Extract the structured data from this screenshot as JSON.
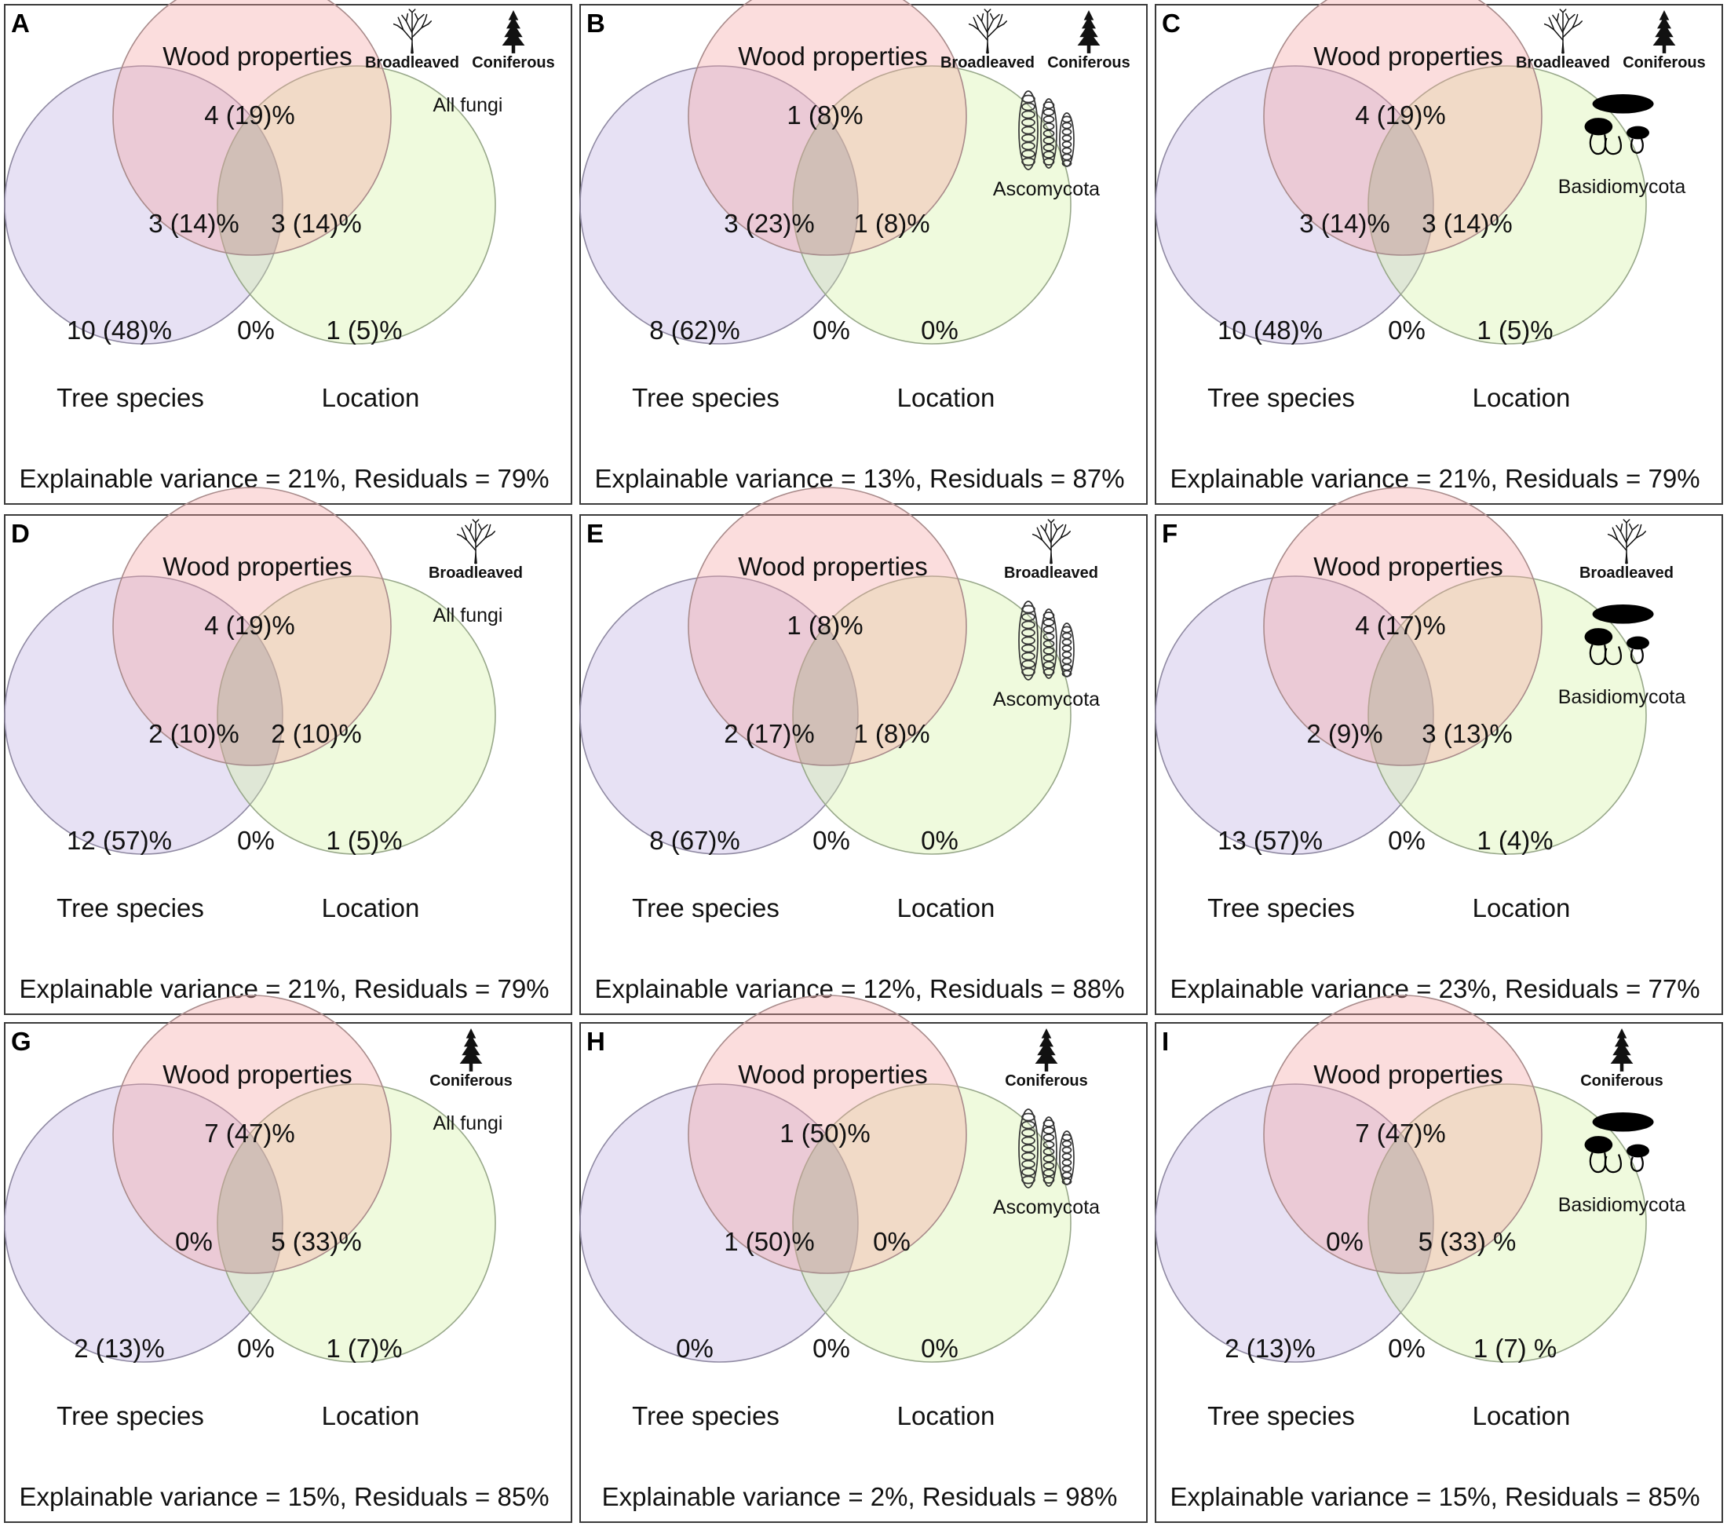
{
  "colors": {
    "wood": "#f4a2a2",
    "tree": "#b5a3df",
    "location": "#d4f0a0",
    "frame": "#3a3a3a"
  },
  "panels": [
    {
      "label": "A",
      "wood_label": "Wood properties",
      "tree_label": "Tree species",
      "location_label": "Location",
      "wood_only": "4 (19)%",
      "wood_tree": "3 (14)%",
      "wood_location": "3 (14)%",
      "tree_only": "10 (48)%",
      "center": "0%",
      "location_only": "1 (5)%",
      "summary": "Explainable variance = 21%, Residuals = 79%",
      "icons": {
        "broadleaved": "Broadleaved",
        "coniferous": "Coniferous"
      },
      "group": "All fungi",
      "group_icon": "none-icon"
    },
    {
      "label": "B",
      "wood_label": "Wood properties",
      "tree_label": "Tree species",
      "location_label": "Location",
      "wood_only": "1 (8)%",
      "wood_tree": "3 (23)%",
      "wood_location": "1 (8)%",
      "tree_only": "8 (62)%",
      "center": "0%",
      "location_only": "0%",
      "summary": "Explainable variance = 13%, Residuals = 87%",
      "icons": {
        "broadleaved": "Broadleaved",
        "coniferous": "Coniferous"
      },
      "group": "Ascomycota",
      "group_icon": "ascus-icon"
    },
    {
      "label": "C",
      "wood_label": "Wood properties",
      "tree_label": "Tree species",
      "location_label": "Location",
      "wood_only": "4 (19)%",
      "wood_tree": "3 (14)%",
      "wood_location": "3 (14)%",
      "tree_only": "10 (48)%",
      "center": "0%",
      "location_only": "1 (5)%",
      "summary": "Explainable variance = 21%, Residuals = 79%",
      "icons": {
        "broadleaved": "Broadleaved",
        "coniferous": "Coniferous"
      },
      "group": "Basidiomycota",
      "group_icon": "mushroom-icon"
    },
    {
      "label": "D",
      "wood_label": "Wood properties",
      "tree_label": "Tree species",
      "location_label": "Location",
      "wood_only": "4 (19)%",
      "wood_tree": "2 (10)%",
      "wood_location": "2 (10)%",
      "tree_only": "12 (57)%",
      "center": "0%",
      "location_only": "1 (5)%",
      "summary": "Explainable variance = 21%, Residuals = 79%",
      "icons": {
        "broadleaved": "Broadleaved"
      },
      "group": "All fungi",
      "group_icon": "none-icon"
    },
    {
      "label": "E",
      "wood_label": "Wood properties",
      "tree_label": "Tree species",
      "location_label": "Location",
      "wood_only": "1 (8)%",
      "wood_tree": "2 (17)%",
      "wood_location": "1 (8)%",
      "tree_only": "8 (67)%",
      "center": "0%",
      "location_only": "0%",
      "summary": "Explainable variance = 12%, Residuals = 88%",
      "icons": {
        "broadleaved": "Broadleaved"
      },
      "group": "Ascomycota",
      "group_icon": "ascus-icon"
    },
    {
      "label": "F",
      "wood_label": "Wood properties",
      "tree_label": "Tree species",
      "location_label": "Location",
      "wood_only": "4 (17)%",
      "wood_tree": "2 (9)%",
      "wood_location": "3 (13)%",
      "tree_only": "13 (57)%",
      "center": "0%",
      "location_only": "1 (4)%",
      "summary": "Explainable variance = 23%, Residuals = 77%",
      "icons": {
        "broadleaved": "Broadleaved"
      },
      "group": "Basidiomycota",
      "group_icon": "mushroom-icon"
    },
    {
      "label": "G",
      "wood_label": "Wood properties",
      "tree_label": "Tree species",
      "location_label": "Location",
      "wood_only": "7 (47)%",
      "wood_tree": "0%",
      "wood_location": "5 (33)%",
      "tree_only": "2 (13)%",
      "center": "0%",
      "location_only": "1 (7)%",
      "summary": "Explainable variance = 15%, Residuals = 85%",
      "icons": {
        "coniferous": "Coniferous"
      },
      "group": "All fungi",
      "group_icon": "none-icon"
    },
    {
      "label": "H",
      "wood_label": "Wood properties",
      "tree_label": "Tree species",
      "location_label": "Location",
      "wood_only": "1 (50)%",
      "wood_tree": "1 (50)%",
      "wood_location": "0%",
      "tree_only": "0%",
      "center": "0%",
      "location_only": "0%",
      "summary": "Explainable variance = 2%, Residuals = 98%",
      "icons": {
        "coniferous": "Coniferous"
      },
      "group": "Ascomycota",
      "group_icon": "ascus-icon"
    },
    {
      "label": "I",
      "wood_label": "Wood properties",
      "tree_label": "Tree species",
      "location_label": "Location",
      "wood_only": "7 (47)%",
      "wood_tree": "0%",
      "wood_location": "5 (33) %",
      "tree_only": "2 (13)%",
      "center": "0%",
      "location_only": "1 (7) %",
      "summary": "Explainable variance = 15%, Residuals = 85%",
      "icons": {
        "coniferous": "Coniferous"
      },
      "group": "Basidiomycota",
      "group_icon": "mushroom-icon"
    }
  ]
}
